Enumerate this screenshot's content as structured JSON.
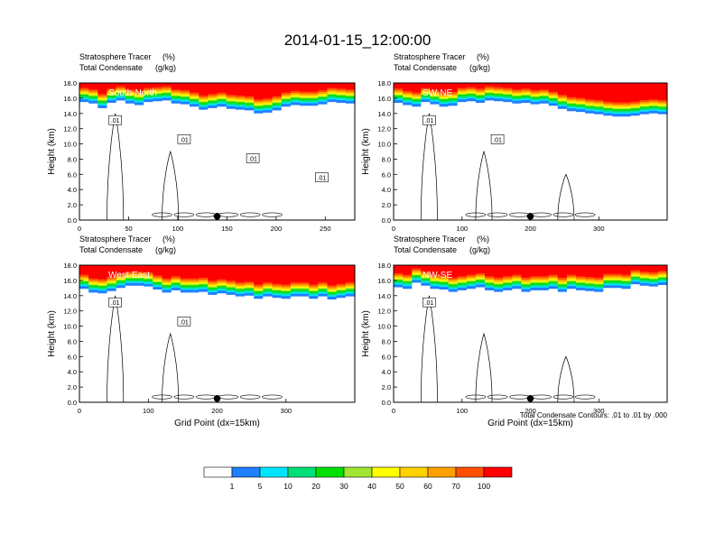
{
  "figure": {
    "title": "2014-01-15_12:00:00",
    "footnote": "Total Condensate Contours: .01 to .01 by .000"
  },
  "panel_titles": {
    "line1_left": "Stratosphere Tracer",
    "line1_unit": "(%)",
    "line2_left": "Total Condensate",
    "line2_unit": "(g/kg)"
  },
  "axis_text": {
    "ylabel": "Height (km)",
    "xlabel": "Grid Point (dx=15km)"
  },
  "colorbar": {
    "colors": [
      "#ffffff",
      "#1f7fff",
      "#00e5ff",
      "#00e078",
      "#00e000",
      "#a0e632",
      "#ffff00",
      "#ffd200",
      "#ffa000",
      "#ff5000",
      "#ff0000"
    ],
    "labels": [
      "1",
      "5",
      "10",
      "20",
      "30",
      "40",
      "50",
      "60",
      "70",
      "100"
    ]
  },
  "chart_data": [
    {
      "type": "heatmap",
      "label": "South-North",
      "xlabel": "",
      "ylabel": "Height (km)",
      "xlim": [
        0,
        280
      ],
      "ylim": [
        0,
        18
      ],
      "xticks": [
        "0",
        "50",
        "100",
        "150",
        "200",
        "250"
      ],
      "xtick_values": [
        0,
        50,
        100,
        150,
        200,
        250
      ],
      "yticks": [
        "0.0",
        "2.0",
        "4.0",
        "6.0",
        "8.0",
        "10.0",
        "12.0",
        "14.0",
        "16.0",
        "18.0"
      ],
      "tracer_top_km": [
        16.4,
        16.2,
        15.6,
        16.3,
        16.6,
        16.2,
        16.0,
        16.4,
        16.5,
        16.6,
        16.2,
        16.1,
        15.8,
        15.4,
        15.6,
        15.8,
        15.5,
        15.4,
        15.3,
        14.9,
        15.0,
        15.3,
        15.8,
        16.0,
        15.9,
        15.9,
        16.1,
        16.4,
        16.3,
        16.2
      ],
      "contour_labels": [
        ".01",
        ".01",
        ".01",
        ".01"
      ],
      "marker_x": 140
    },
    {
      "type": "heatmap",
      "label": "SW-NE",
      "xlabel": "",
      "ylabel": "Height (km)",
      "xlim": [
        0,
        400
      ],
      "ylim": [
        0,
        18
      ],
      "xticks": [
        "0",
        "100",
        "200",
        "300"
      ],
      "xtick_values": [
        0,
        100,
        200,
        300
      ],
      "yticks": [
        "0.0",
        "2.0",
        "4.0",
        "6.0",
        "8.0",
        "10.0",
        "12.0",
        "14.0",
        "16.0",
        "18.0"
      ],
      "tracer_top_km": [
        16.3,
        16.0,
        15.8,
        16.4,
        16.1,
        15.8,
        15.9,
        16.4,
        16.5,
        16.3,
        16.6,
        16.5,
        16.4,
        16.2,
        16.3,
        16.1,
        16.2,
        15.9,
        15.5,
        15.2,
        15.1,
        14.9,
        14.8,
        14.6,
        14.5,
        14.5,
        14.6,
        14.8,
        14.9,
        14.8
      ],
      "contour_labels": [
        ".01",
        ".01"
      ],
      "marker_x": 200
    },
    {
      "type": "heatmap",
      "label": "West-East",
      "xlabel": "Grid Point (dx=15km)",
      "ylabel": "Height (km)",
      "xlim": [
        0,
        400
      ],
      "ylim": [
        0,
        18
      ],
      "xticks": [
        "0",
        "100",
        "200",
        "300"
      ],
      "xtick_values": [
        0,
        100,
        200,
        300
      ],
      "yticks": [
        "0.0",
        "2.0",
        "4.0",
        "6.0",
        "8.0",
        "10.0",
        "12.0",
        "14.0",
        "16.0",
        "18.0"
      ],
      "tracer_top_km": [
        15.8,
        15.3,
        15.2,
        15.5,
        15.9,
        16.2,
        16.2,
        16.1,
        15.7,
        15.3,
        15.6,
        15.3,
        15.3,
        15.4,
        15.0,
        15.2,
        15.0,
        14.8,
        14.9,
        14.5,
        14.8,
        14.6,
        14.5,
        14.8,
        14.8,
        14.5,
        14.8,
        14.4,
        14.6,
        14.8
      ],
      "contour_labels": [
        ".01",
        ".01"
      ],
      "marker_x": 200
    },
    {
      "type": "heatmap",
      "label": "NW-SE",
      "xlabel": "Grid Point (dx=15km)",
      "ylabel": "Height (km)",
      "xlim": [
        0,
        400
      ],
      "ylim": [
        0,
        18
      ],
      "xticks": [
        "0",
        "100",
        "200",
        "300"
      ],
      "xtick_values": [
        0,
        100,
        200,
        300
      ],
      "yticks": [
        "0.0",
        "2.0",
        "4.0",
        "6.0",
        "8.0",
        "10.0",
        "12.0",
        "14.0",
        "16.0",
        "18.0"
      ],
      "tracer_top_km": [
        16.0,
        15.8,
        16.6,
        16.2,
        15.8,
        15.7,
        15.4,
        15.6,
        15.8,
        16.0,
        15.6,
        15.4,
        15.6,
        15.8,
        15.4,
        15.6,
        15.6,
        15.8,
        15.4,
        15.8,
        15.6,
        15.5,
        15.4,
        15.9,
        15.9,
        15.8,
        16.4,
        16.2,
        16.1,
        16.3
      ],
      "contour_labels": [
        ".01"
      ],
      "marker_x": 200
    }
  ]
}
